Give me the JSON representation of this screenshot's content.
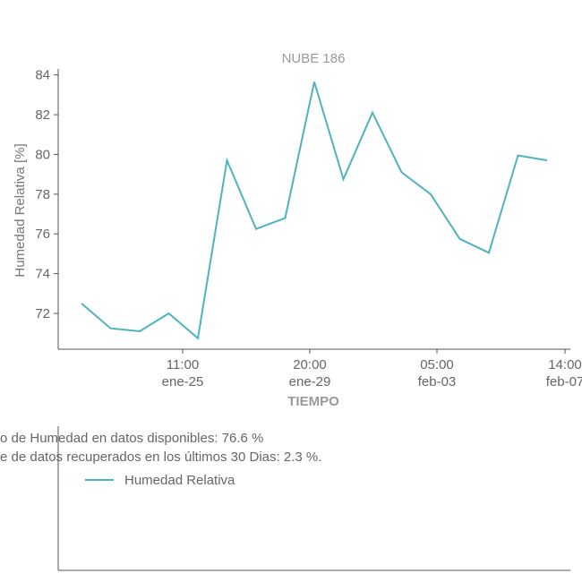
{
  "chart_data": {
    "type": "line",
    "title": "NUBE 186",
    "xlabel": "TIEMPO",
    "ylabel": "Humedad Relativa [%]",
    "ylim": [
      70.2,
      84.3
    ],
    "yticks": [
      72,
      74,
      76,
      78,
      80,
      82,
      84
    ],
    "xticks": [
      {
        "time": "11:00",
        "date": "ene-25"
      },
      {
        "time": "20:00",
        "date": "ene-29"
      },
      {
        "time": "05:00",
        "date": "feb-03"
      },
      {
        "time": "14:00",
        "date": "feb-07"
      }
    ],
    "series": [
      {
        "name": "Humedad Relativa",
        "color": "#4fb3bf",
        "values": [
          72.5,
          71.25,
          71.1,
          72.0,
          70.75,
          79.7,
          76.25,
          76.8,
          83.65,
          78.75,
          82.1,
          79.1,
          78.0,
          75.75,
          75.05,
          79.95,
          79.7
        ]
      }
    ],
    "legend": {
      "label": "Humedad Relativa",
      "placement": "below-left"
    },
    "notes": [
      "o de Humedad en datos disponibles: 76.6 %",
      "e de datos recuperados en los últimos 30 Dias: 2.3 %."
    ]
  }
}
